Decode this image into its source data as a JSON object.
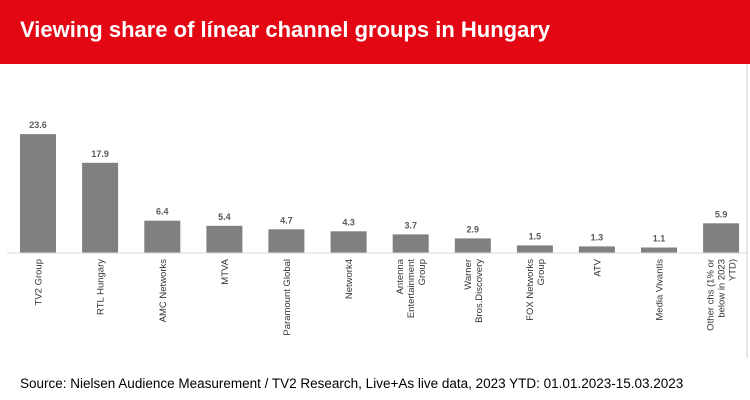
{
  "header": {
    "title": "Viewing share of línear channel groups in Hungary",
    "background_color": "#e30613"
  },
  "footer": {
    "source": "Source: Nielsen Audience Measurement / TV2 Research, Live+As live data, 2023 YTD: 01.01.2023-15.03.2023"
  },
  "chart_data": {
    "type": "bar",
    "title": "Viewing share of línear channel groups in Hungary",
    "xlabel": "",
    "ylabel": "",
    "ylim": [
      0,
      25
    ],
    "grid": false,
    "legend": "none",
    "bar_color": "#808080",
    "categories": [
      "TV2 Group",
      "RTL Hungary",
      "AMC Networks",
      "MTVA",
      "Paramount Global",
      "Network4",
      "Antenna Entertainment Group",
      "Warner Bros.Discovery",
      "FOX Networks Group",
      "ATV",
      "Media Vivantis",
      "Other chs (1% or below in 2023 YTD)"
    ],
    "category_lines": [
      [
        "TV2 Group"
      ],
      [
        "RTL Hungary"
      ],
      [
        "AMC Networks"
      ],
      [
        "MTVA"
      ],
      [
        "Paramount Global"
      ],
      [
        "Network4"
      ],
      [
        "Antenna",
        "Entertainment",
        "Group"
      ],
      [
        "Warner",
        "Bros.Discovery"
      ],
      [
        "FOX Networks",
        "Group"
      ],
      [
        "ATV"
      ],
      [
        "Media Vivantis"
      ],
      [
        "Other chs (1% or",
        "below in 2023",
        "YTD)"
      ]
    ],
    "values": [
      23.6,
      17.9,
      6.4,
      5.4,
      4.7,
      4.3,
      3.7,
      2.9,
      1.5,
      1.3,
      1.1,
      5.9
    ],
    "value_labels": [
      "23.6",
      "17.9",
      "6.4",
      "5.4",
      "4.7",
      "4.3",
      "3.7",
      "2.9",
      "1.5",
      "1.3",
      "1.1",
      "5.9"
    ]
  }
}
